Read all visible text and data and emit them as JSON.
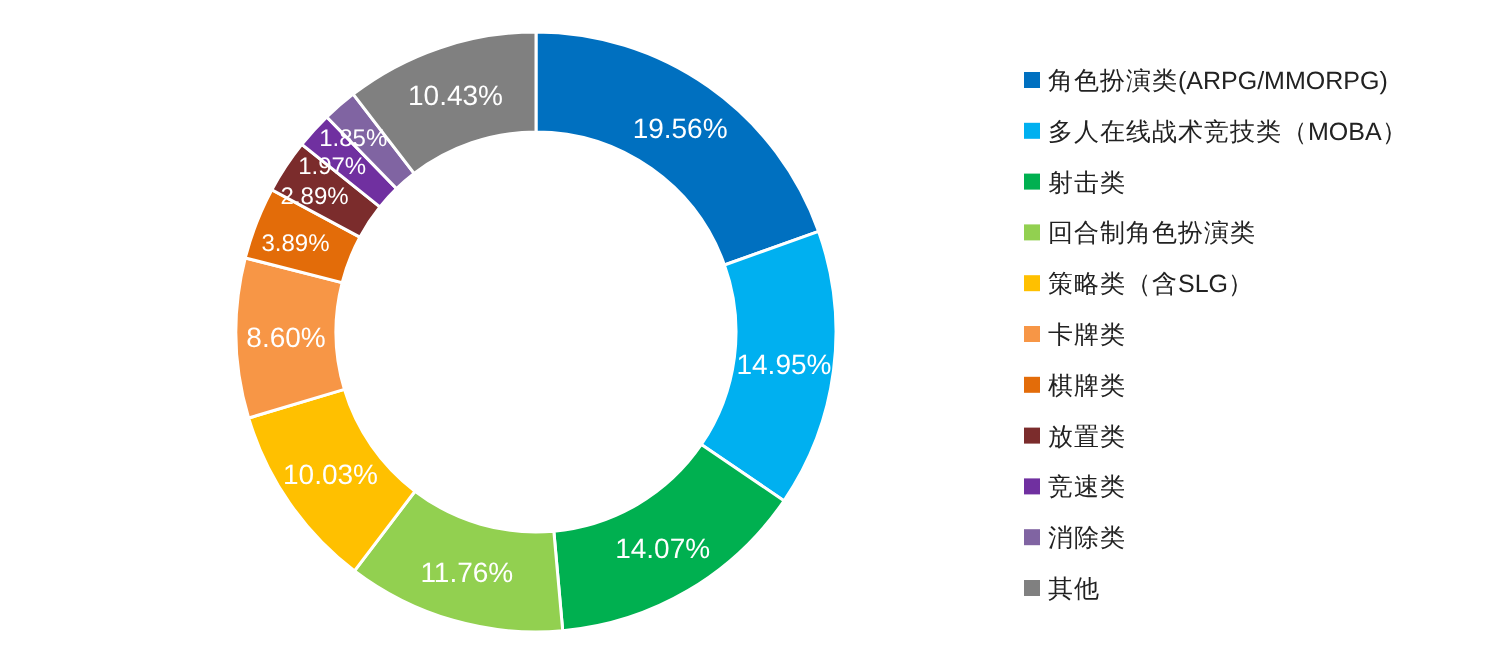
{
  "chart_data": {
    "type": "donut",
    "categories": [
      "角色扮演类(ARPG/MMORPG)",
      "多人在线战术竞技类（MOBA）",
      "射击类",
      "回合制角色扮演类",
      "策略类（含SLG）",
      "卡牌类",
      "棋牌类",
      "放置类",
      "竞速类",
      "消除类",
      "其他"
    ],
    "values": [
      19.56,
      14.95,
      14.07,
      11.76,
      10.03,
      8.6,
      3.89,
      2.89,
      1.97,
      1.85,
      10.43
    ],
    "colors": [
      "#0070c0",
      "#00b0f0",
      "#00b050",
      "#92d050",
      "#ffc000",
      "#f79646",
      "#e36c09",
      "#7b2c2c",
      "#7030a0",
      "#8064a2",
      "#808080"
    ],
    "value_labels": [
      "19.56%",
      "14.95%",
      "14.07%",
      "11.76%",
      "10.03%",
      "8.60%",
      "3.89%",
      "2.89%",
      "1.97%",
      "1.85%",
      "10.43%"
    ],
    "legend": "right"
  }
}
